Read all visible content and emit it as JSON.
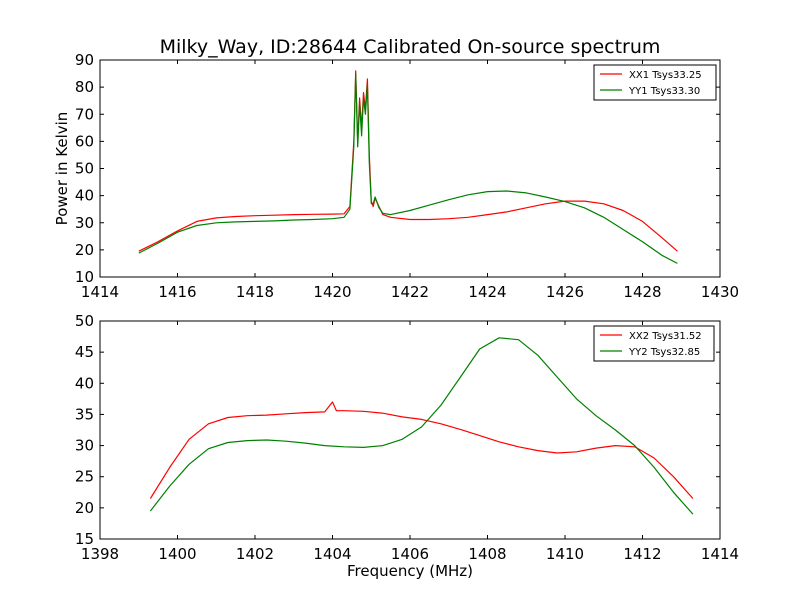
{
  "figure": {
    "title": "Milky_Way, ID:28644 Calibrated On-source spectrum"
  },
  "chart_data": [
    {
      "type": "line",
      "title": "Milky_Way, ID:28644 Calibrated On-source spectrum",
      "xlabel": "",
      "ylabel": "Power in Kelvin",
      "xlim": [
        1414,
        1430
      ],
      "ylim": [
        10,
        90
      ],
      "xticks": [
        1414,
        1416,
        1418,
        1420,
        1422,
        1424,
        1426,
        1428,
        1430
      ],
      "yticks": [
        10,
        20,
        30,
        40,
        50,
        60,
        70,
        80,
        90
      ],
      "grid": false,
      "legend": "top-right",
      "series": [
        {
          "name": "XX1 Tsys33.25",
          "color": "#ff0000",
          "x": [
            1415.0,
            1415.5,
            1416.0,
            1416.5,
            1417.0,
            1417.5,
            1418.0,
            1418.5,
            1419.0,
            1419.5,
            1420.0,
            1420.3,
            1420.45,
            1420.55,
            1420.6,
            1420.65,
            1420.7,
            1420.75,
            1420.8,
            1420.85,
            1420.9,
            1420.95,
            1421.0,
            1421.05,
            1421.1,
            1421.2,
            1421.3,
            1421.5,
            1422.0,
            1422.5,
            1423.0,
            1423.5,
            1424.0,
            1424.5,
            1425.0,
            1425.5,
            1426.0,
            1426.5,
            1427.0,
            1427.5,
            1428.0,
            1428.5,
            1428.9
          ],
          "y": [
            19.5,
            23.0,
            27.0,
            30.5,
            31.8,
            32.3,
            32.6,
            32.8,
            33.0,
            33.1,
            33.2,
            33.3,
            36.0,
            60.0,
            86.0,
            60.0,
            76.0,
            65.0,
            78.0,
            72.0,
            83.0,
            55.0,
            38.0,
            36.0,
            39.0,
            36.0,
            33.0,
            32.0,
            31.2,
            31.2,
            31.5,
            32.0,
            33.0,
            34.0,
            35.5,
            37.0,
            38.0,
            38.0,
            37.0,
            34.5,
            30.5,
            24.5,
            19.5
          ]
        },
        {
          "name": "YY1 Tsys33.30",
          "color": "#008000",
          "x": [
            1415.0,
            1415.5,
            1416.0,
            1416.5,
            1417.0,
            1417.5,
            1418.0,
            1418.5,
            1419.0,
            1419.5,
            1420.0,
            1420.3,
            1420.45,
            1420.55,
            1420.6,
            1420.65,
            1420.7,
            1420.75,
            1420.8,
            1420.85,
            1420.9,
            1420.95,
            1421.0,
            1421.05,
            1421.1,
            1421.2,
            1421.3,
            1421.5,
            1422.0,
            1422.5,
            1423.0,
            1423.5,
            1424.0,
            1424.5,
            1425.0,
            1425.5,
            1426.0,
            1426.5,
            1427.0,
            1427.5,
            1428.0,
            1428.5,
            1428.9
          ],
          "y": [
            18.8,
            22.5,
            26.5,
            29.0,
            30.0,
            30.3,
            30.5,
            30.7,
            31.0,
            31.2,
            31.5,
            32.0,
            35.0,
            58.0,
            85.0,
            58.0,
            74.0,
            62.0,
            76.0,
            70.0,
            81.0,
            52.0,
            37.0,
            37.0,
            39.5,
            35.5,
            33.5,
            33.0,
            34.5,
            36.5,
            38.5,
            40.3,
            41.5,
            41.7,
            41.0,
            39.5,
            37.8,
            35.5,
            32.0,
            27.5,
            23.0,
            18.0,
            15.0
          ]
        }
      ]
    },
    {
      "type": "line",
      "title": "",
      "xlabel": "Frequency (MHz)",
      "ylabel": "",
      "xlim": [
        1398,
        1414
      ],
      "ylim": [
        15,
        50
      ],
      "xticks": [
        1398,
        1400,
        1402,
        1404,
        1406,
        1408,
        1410,
        1412,
        1414
      ],
      "yticks": [
        15,
        20,
        25,
        30,
        35,
        40,
        45,
        50
      ],
      "grid": false,
      "legend": "top-right",
      "series": [
        {
          "name": "XX2 Tsys31.52",
          "color": "#ff0000",
          "x": [
            1399.3,
            1399.8,
            1400.3,
            1400.8,
            1401.3,
            1401.8,
            1402.3,
            1402.8,
            1403.3,
            1403.8,
            1404.0,
            1404.1,
            1404.3,
            1404.8,
            1405.3,
            1405.8,
            1406.3,
            1406.8,
            1407.3,
            1407.8,
            1408.3,
            1408.8,
            1409.3,
            1409.8,
            1410.3,
            1410.8,
            1411.3,
            1411.8,
            1412.3,
            1412.8,
            1413.3
          ],
          "y": [
            21.5,
            26.5,
            31.0,
            33.5,
            34.5,
            34.8,
            34.9,
            35.1,
            35.3,
            35.4,
            37.0,
            35.6,
            35.6,
            35.5,
            35.2,
            34.6,
            34.2,
            33.5,
            32.6,
            31.6,
            30.6,
            29.8,
            29.2,
            28.8,
            29.0,
            29.6,
            30.0,
            29.8,
            28.0,
            25.0,
            21.5
          ]
        },
        {
          "name": "YY2 Tsys32.85",
          "color": "#008000",
          "x": [
            1399.3,
            1399.8,
            1400.3,
            1400.8,
            1401.3,
            1401.8,
            1402.3,
            1402.8,
            1403.3,
            1403.8,
            1404.3,
            1404.8,
            1405.3,
            1405.8,
            1406.3,
            1406.8,
            1407.3,
            1407.8,
            1408.3,
            1408.8,
            1409.3,
            1409.8,
            1410.3,
            1410.8,
            1411.3,
            1411.8,
            1412.3,
            1412.8,
            1413.3
          ],
          "y": [
            19.5,
            23.5,
            27.0,
            29.5,
            30.5,
            30.8,
            30.9,
            30.7,
            30.4,
            30.0,
            29.8,
            29.7,
            30.0,
            31.0,
            33.0,
            36.5,
            41.0,
            45.5,
            47.3,
            47.0,
            44.5,
            41.0,
            37.5,
            34.8,
            32.5,
            30.0,
            26.5,
            22.5,
            19.0
          ]
        }
      ]
    }
  ]
}
